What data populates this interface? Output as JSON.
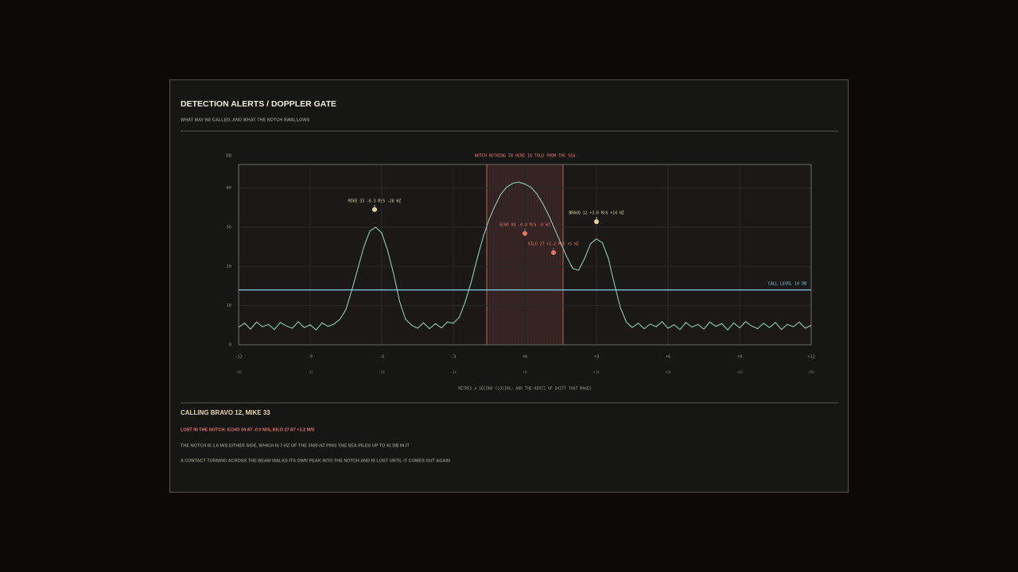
{
  "header": {
    "title": "DETECTION ALERTS / DOPPLER GATE",
    "subtitle": "WHAT MAY BE CALLED, AND WHAT THE NOTCH SWALLOWS"
  },
  "chart_data": {
    "type": "line",
    "y_label": "DB",
    "x_label": "METRES A SECOND CLOSING, AND THE HERTZ OF SHIFT THAT MAKES",
    "color": "#8fc7b4",
    "grid": true,
    "xlim": [
      -12,
      12
    ],
    "ylim": [
      0,
      46
    ],
    "xticks": [
      -12,
      -9,
      -6,
      -3,
      {
        "value": 0,
        "label": "+0"
      },
      {
        "value": 3,
        "label": "+3"
      },
      {
        "value": 6,
        "label": "+6"
      },
      {
        "value": 9,
        "label": "+9"
      },
      {
        "value": 12,
        "label": "+12"
      }
    ],
    "x2ticks": [
      {
        "value": -12,
        "label": "-56"
      },
      {
        "value": -9,
        "label": "-42"
      },
      {
        "value": -6,
        "label": "-28"
      },
      {
        "value": -3,
        "label": "-14"
      },
      {
        "value": 0,
        "label": "+0"
      },
      {
        "value": 3,
        "label": "+14"
      },
      {
        "value": 6,
        "label": "+28"
      },
      {
        "value": 9,
        "label": "+42"
      },
      {
        "value": 12,
        "label": "+56"
      }
    ],
    "yticks": [
      0,
      10,
      20,
      30,
      40
    ],
    "x": [
      -12,
      -11.75,
      -11.5,
      -11.25,
      -11,
      -10.75,
      -10.5,
      -10.25,
      -10,
      -9.75,
      -9.5,
      -9.25,
      -9,
      -8.75,
      -8.5,
      -8.25,
      -8,
      -7.75,
      -7.5,
      -7.25,
      -7,
      -6.75,
      -6.5,
      -6.25,
      -6,
      -5.75,
      -5.5,
      -5.25,
      -5,
      -4.75,
      -4.5,
      -4.25,
      -4,
      -3.75,
      -3.5,
      -3.25,
      -3,
      -2.75,
      -2.5,
      -2.25,
      -2,
      -1.75,
      -1.5,
      -1.25,
      -1,
      -0.75,
      -0.5,
      -0.25,
      0,
      0.25,
      0.5,
      0.75,
      1,
      1.25,
      1.5,
      1.75,
      2,
      2.25,
      2.5,
      2.75,
      3,
      3.25,
      3.5,
      3.75,
      4,
      4.25,
      4.5,
      4.75,
      5,
      5.25,
      5.5,
      5.75,
      6,
      6.25,
      6.5,
      6.75,
      7,
      7.25,
      7.5,
      7.75,
      8,
      8.25,
      8.5,
      8.75,
      9,
      9.25,
      9.5,
      9.75,
      10,
      10.25,
      10.5,
      10.75,
      11,
      11.25,
      11.5,
      11.75,
      12
    ],
    "values": [
      4.5,
      5.5,
      4,
      5.8,
      4.6,
      5.2,
      3.9,
      5.7,
      4.8,
      4.2,
      5.9,
      4.4,
      5.1,
      3.8,
      5.6,
      4.7,
      5.3,
      6.5,
      9,
      14,
      19.5,
      25,
      29,
      30,
      28.5,
      24,
      18,
      11,
      6.5,
      5,
      4.2,
      5.6,
      4.1,
      5.4,
      4.3,
      5.8,
      5.5,
      7,
      11,
      16,
      22,
      27.5,
      32,
      35.5,
      38.5,
      40.3,
      41.2,
      41.5,
      41,
      40.2,
      38.5,
      36,
      33,
      29.5,
      26,
      22.5,
      19.5,
      19,
      22,
      25.8,
      27,
      26,
      22,
      15.5,
      9.5,
      5.8,
      4.4,
      5.5,
      4.1,
      5.3,
      4.6,
      5.9,
      4.2,
      5.1,
      3.9,
      5.7,
      4.5,
      5.2,
      4,
      5.8,
      4.7,
      5.4,
      3.8,
      5.6,
      4.3,
      5.9,
      4.8,
      4.1,
      5.5,
      4.4,
      5.7,
      3.9,
      5.2,
      4.6,
      5.8,
      4.2,
      5
    ],
    "notch": {
      "range": [
        -1.6,
        1.6
      ],
      "label": "NOTCH  NOTHING IN HERE IS TOLD FROM THE SEA",
      "color": "#e8776a"
    },
    "call_level": {
      "value": 14,
      "label": "CALL LEVEL 14 DB",
      "color": "#7fc3de"
    },
    "contacts": [
      {
        "label": "MIKE 33 -6.3 M/S -28 HZ",
        "x": -6.3,
        "y": 34.5,
        "color": "#e0d6a0"
      },
      {
        "label": "ECHO 04 -0.0 M/S -0 HZ",
        "x": 0,
        "y": 28.4,
        "color": "#e8776a"
      },
      {
        "label": "KILO 27 +1.2 M/S +5 HZ",
        "x": 1.2,
        "y": 23.5,
        "color": "#e8776a"
      },
      {
        "label": "BRAVO 12 +3.0 M/S +14 HZ",
        "x": 3,
        "y": 31.4,
        "color": "#e0d6a0"
      }
    ]
  },
  "summary": {
    "calling": "CALLING BRAVO 12, MIKE 33",
    "lost": "LOST IN THE NOTCH: ECHO 04 AT -0.0 M/S, KILO 27 AT +1.2 M/S",
    "notes": [
      "THE NOTCH IS 1.6 M/S EITHER SIDE, WHICH IS 7 HZ OF THE 3500 HZ PING   THE SEA PILES UP TO 41 DB IN IT",
      "A CONTACT TURNING ACROSS THE BEAM WALKS ITS OWN PEAK INTO THE NOTCH AND IS LOST UNTIL IT COMES OUT AGAIN"
    ]
  }
}
